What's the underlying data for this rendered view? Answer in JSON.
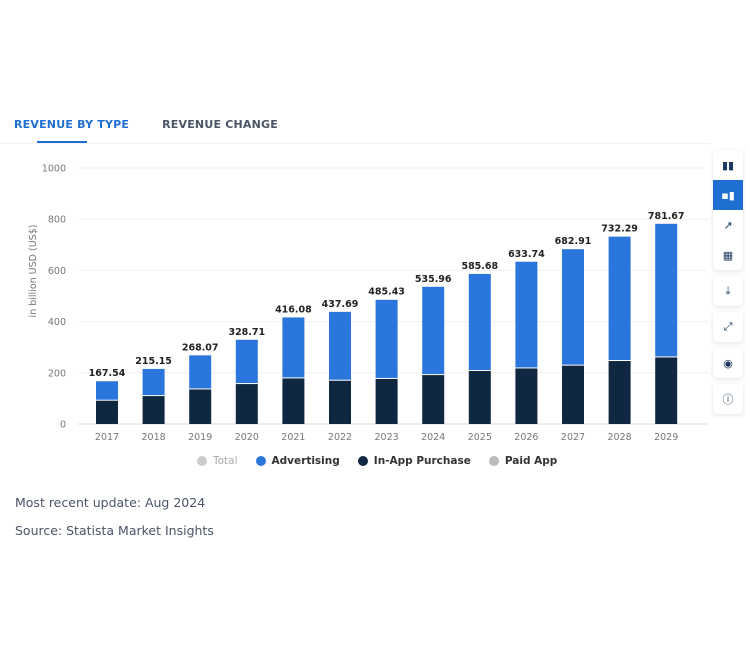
{
  "tabs": [
    {
      "label": "REVENUE BY TYPE",
      "active": true
    },
    {
      "label": "REVENUE CHANGE",
      "active": false
    }
  ],
  "toolbar": {
    "icons": [
      "bar-chart-icon",
      "stacked-bar-icon",
      "line-chart-icon",
      "table-icon",
      "download-icon",
      "fullscreen-icon",
      "hide-icon",
      "info-icon"
    ]
  },
  "colors": {
    "total": "#cccccc",
    "advertising": "#2a76dd",
    "in_app": "#0f2740",
    "paid_app": "#bbbbbb"
  },
  "footer": {
    "update": "Most recent update: Aug 2024",
    "source": "Source: Statista Market Insights"
  },
  "chart_data": {
    "type": "bar",
    "stacked": true,
    "ylabel": "in billion USD (US$)",
    "ylim": [
      0,
      1000
    ],
    "yticks": [
      0,
      200,
      400,
      600,
      800,
      1000
    ],
    "grid": true,
    "legend_position": "bottom",
    "categories": [
      "2017",
      "2018",
      "2019",
      "2020",
      "2021",
      "2022",
      "2023",
      "2024",
      "2025",
      "2026",
      "2027",
      "2028",
      "2029"
    ],
    "totals": [
      167.54,
      215.15,
      268.07,
      328.71,
      416.08,
      437.69,
      485.43,
      535.96,
      585.68,
      633.74,
      682.91,
      732.29,
      781.67
    ],
    "series": [
      {
        "name": "Total",
        "visible": false,
        "values": [
          167.54,
          215.15,
          268.07,
          328.71,
          416.08,
          437.69,
          485.43,
          535.96,
          585.68,
          633.74,
          682.91,
          732.29,
          781.67
        ]
      },
      {
        "name": "Advertising",
        "values": [
          76,
          106,
          133,
          173,
          238,
          269,
          309,
          345,
          379,
          417,
          455,
          486,
          522
        ]
      },
      {
        "name": "In-App Purchase",
        "values": [
          91,
          109,
          135,
          156,
          178,
          169,
          176,
          191,
          207,
          217,
          228,
          246,
          260
        ]
      },
      {
        "name": "Paid App",
        "values": [
          0.5,
          0.5,
          0.5,
          0.5,
          0.5,
          0.5,
          0.5,
          0.5,
          0.5,
          0.5,
          0.5,
          0.5,
          0.5
        ]
      }
    ]
  }
}
